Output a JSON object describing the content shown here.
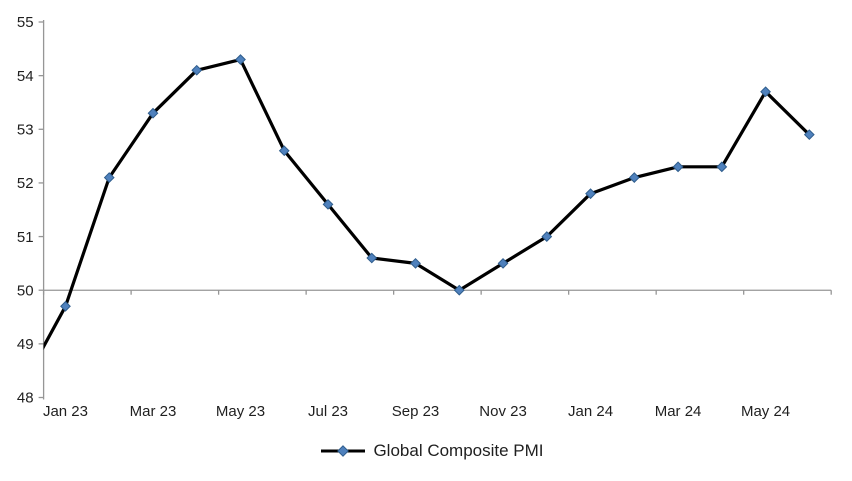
{
  "chart_data": {
    "type": "line",
    "title": "",
    "categories": [
      "Dec 22",
      "Jan 23",
      "Feb 23",
      "Mar 23",
      "Apr 23",
      "May 23",
      "Jun 23",
      "Jul 23",
      "Aug 23",
      "Sep 23",
      "Oct 23",
      "Nov 23",
      "Dec 23",
      "Jan 24",
      "Feb 24",
      "Mar 24",
      "Apr 24",
      "May 24",
      "Jun 24"
    ],
    "series": [
      {
        "name": "Global Composite PMI",
        "values": [
          48.2,
          49.7,
          52.1,
          53.3,
          54.1,
          54.3,
          52.6,
          51.6,
          50.6,
          50.5,
          50.0,
          50.5,
          51.0,
          51.8,
          52.1,
          52.3,
          52.3,
          53.7,
          52.9
        ]
      }
    ],
    "visible_x_tick_labels": [
      "Jan 23",
      "Mar 23",
      "May 23",
      "Jul 23",
      "Sep 23",
      "Nov 23",
      "Jan 24",
      "Mar 24",
      "May 24"
    ],
    "y_ticks": [
      48,
      49,
      50,
      51,
      52,
      53,
      54,
      55
    ],
    "ylim": [
      48,
      55
    ],
    "x_label_start_index": 1,
    "x_label_interval": 2,
    "x_axis_crosses_at": 50,
    "first_category_clipped_at_left_edge": true,
    "grid": "off",
    "legend_position": "bottom-center",
    "marker": "diamond",
    "colors": {
      "series_line": "#000000",
      "marker_fill": "#4F81BD",
      "marker_border": "#2F5D8C",
      "axis": "#969696",
      "label_text": "#1f1f1f"
    }
  }
}
